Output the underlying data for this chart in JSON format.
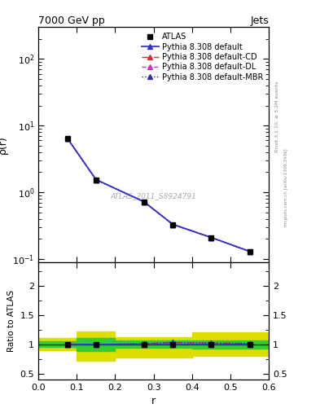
{
  "title": "7000 GeV pp",
  "title_right": "Jets",
  "ylabel_main": "ρ(r)",
  "ylabel_ratio": "Ratio to ATLAS",
  "xlabel": "r",
  "watermark": "ATLAS_2011_S8924791",
  "rivet_label": "Rivet 3.1.10, ≥ 3.2M events",
  "mcplots_label": "mcplots.cern.ch [arXiv:1306.3436]",
  "x_data": [
    0.075,
    0.15,
    0.275,
    0.35,
    0.45,
    0.55
  ],
  "y_atlas": [
    6.5,
    1.55,
    0.72,
    0.33,
    0.21,
    0.13
  ],
  "y_pythia_default": [
    6.5,
    1.55,
    0.72,
    0.33,
    0.21,
    0.13
  ],
  "y_pythia_cd": [
    6.5,
    1.55,
    0.72,
    0.33,
    0.21,
    0.13
  ],
  "y_pythia_dl": [
    6.5,
    1.55,
    0.72,
    0.33,
    0.21,
    0.13
  ],
  "y_pythia_mbr": [
    6.5,
    1.55,
    0.72,
    0.33,
    0.21,
    0.13
  ],
  "ratio_default": [
    1.0,
    1.0,
    1.0,
    1.0,
    1.0,
    1.0
  ],
  "ratio_cd": [
    1.0,
    0.995,
    1.01,
    1.03,
    1.02,
    1.015
  ],
  "ratio_dl": [
    1.0,
    1.0,
    1.0,
    1.0,
    1.0,
    1.005
  ],
  "ratio_mbr": [
    1.0,
    0.995,
    1.01,
    1.03,
    1.02,
    1.015
  ],
  "band_x_green": [
    0.0,
    0.1,
    0.1,
    0.2,
    0.2,
    0.4,
    0.4,
    0.6
  ],
  "green_upper": [
    1.05,
    1.05,
    1.1,
    1.1,
    1.06,
    1.06,
    1.07,
    1.07
  ],
  "green_lower": [
    0.95,
    0.95,
    0.88,
    0.88,
    0.94,
    0.94,
    0.93,
    0.93
  ],
  "band_x_yellow": [
    0.0,
    0.1,
    0.1,
    0.2,
    0.2,
    0.4,
    0.4,
    0.6
  ],
  "yellow_upper": [
    1.1,
    1.1,
    1.22,
    1.22,
    1.12,
    1.12,
    1.2,
    1.2
  ],
  "yellow_lower": [
    0.9,
    0.9,
    0.72,
    0.72,
    0.78,
    0.78,
    0.8,
    0.8
  ],
  "ylim_main": [
    0.09,
    300
  ],
  "ylim_ratio": [
    0.4,
    2.4
  ],
  "xlim": [
    0.0,
    0.6
  ],
  "color_atlas": "#000000",
  "color_default": "#3333cc",
  "color_cd": "#cc3333",
  "color_dl": "#cc33cc",
  "color_mbr": "#3333aa",
  "color_green": "#33cc33",
  "color_yellow": "#dddd00",
  "legend_fontsize": 7,
  "axis_fontsize": 9
}
